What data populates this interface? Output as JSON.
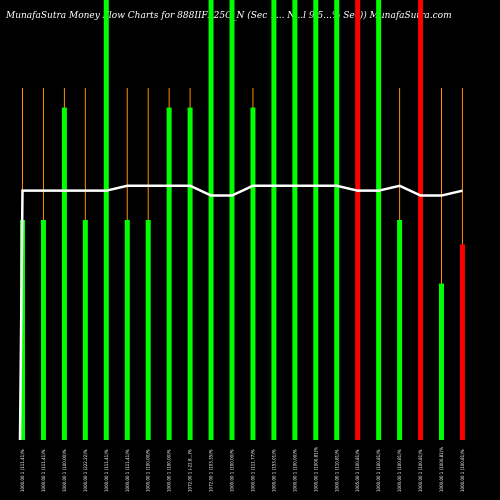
{
  "chart_data": {
    "type": "bar",
    "title": "MunafaSutra  Money Flow  Charts for 888IIFL25C_N                              (Sec 1...  N...l 9.5...% Sec)) MunafaSutra.com",
    "xlabel": "",
    "ylabel": "",
    "grid": false,
    "colors": {
      "background": "#000000",
      "up": "#00ff00",
      "down": "#ff0000",
      "wick": "#ff8c00",
      "line": "#ffffff"
    },
    "categories": [
      "1000.00 1 (111.41)%",
      "1000.00 1 (111.41)%",
      "1000.00 1 (100.00)%",
      "1000.00 1 (222.22)%",
      "1000.00 1 (111.41)%",
      "1000.00 1 (111.41)%",
      "1000.00 1 (100.00)%",
      "1000.00 1 (100.00)%",
      "1072.00 1 (-22.8...)%",
      "1072.00 1 (103.35)%",
      "1000.00 1 (100.00)%",
      "1000.00 1 (111.77)%",
      "1000.00 1 (153.01)%",
      "1000.00 1 (100.00)%",
      "1000.00 1 (1000.81)%",
      "1000.00 1 (110.81)%",
      "1005.00 1 (100.81)%",
      "1000.00 1 (100.81)%",
      "1000.00 1 (100.81)%",
      "1000.00 1 (100.81)%",
      "1000.00 1 (1000.81)%",
      "1000.00 1 (100.81)%"
    ],
    "series": [
      {
        "values": [
          45,
          45,
          68,
          45,
          90,
          45,
          45,
          68,
          68,
          90,
          90,
          68,
          90,
          90,
          90,
          90,
          90,
          90,
          45,
          90,
          32,
          40
        ],
        "colors": [
          "up",
          "up",
          "up",
          "up",
          "up",
          "up",
          "up",
          "up",
          "up",
          "up",
          "up",
          "up",
          "up",
          "up",
          "up",
          "up",
          "down",
          "up",
          "up",
          "down",
          "up",
          "down"
        ],
        "wick_top": [
          72,
          72,
          72,
          72,
          72,
          72,
          72,
          72,
          72,
          72,
          72,
          72,
          72,
          72,
          72,
          72,
          72,
          72,
          72,
          72,
          72,
          72
        ]
      },
      {
        "type": "line",
        "values": [
          51,
          51,
          51,
          51,
          51,
          52,
          52,
          52,
          52,
          50,
          50,
          52,
          52,
          52,
          52,
          52,
          51,
          51,
          52,
          50,
          50,
          51
        ]
      }
    ],
    "ylim": [
      0,
      90
    ]
  }
}
